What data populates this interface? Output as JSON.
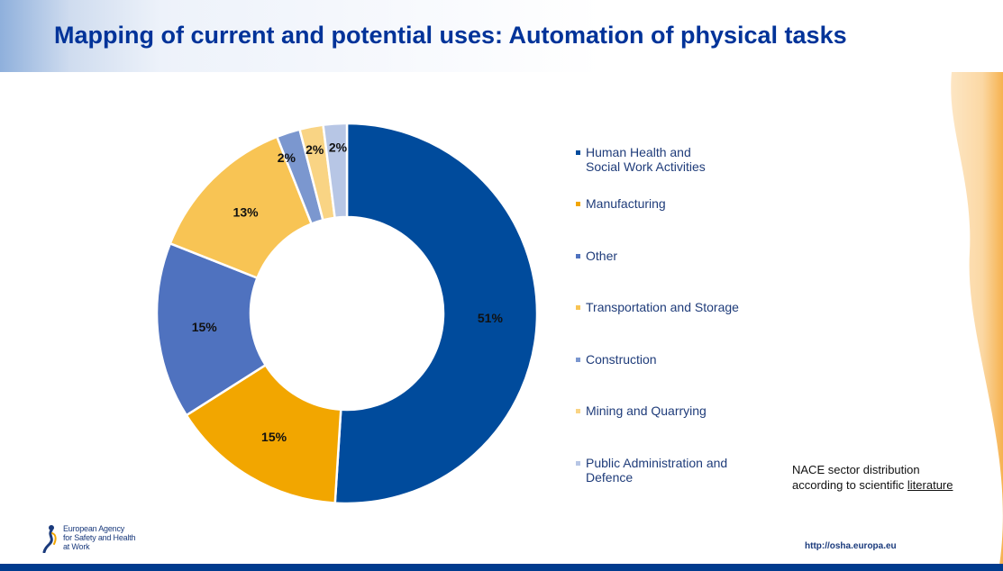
{
  "header": {
    "title": "Mapping of current and potential uses: Automation of physical tasks"
  },
  "chart_data": {
    "type": "pie",
    "style": "donut",
    "legend_position": "right",
    "series": [
      {
        "name": "Human Health and\nSocial Work Activities",
        "value": 51,
        "label": "51%",
        "color": "#004b9c"
      },
      {
        "name": "Manufacturing",
        "value": 15,
        "label": "15%",
        "color": "#f2a600"
      },
      {
        "name": "Other",
        "value": 15,
        "label": "15%",
        "color": "#4f72bf"
      },
      {
        "name": "Transportation and Storage",
        "value": 13,
        "label": "13%",
        "color": "#f8c454"
      },
      {
        "name": "Construction",
        "value": 2,
        "label": "2%",
        "color": "#7b97cf"
      },
      {
        "name": "Mining and Quarrying",
        "value": 2,
        "label": "2%",
        "color": "#f9d484"
      },
      {
        "name": "Public Administration and\nDefence",
        "value": 2,
        "label": "2%",
        "color": "#b7c6e5"
      }
    ]
  },
  "note": {
    "line1": "NACE sector distribution",
    "line2_prefix": "according to scientific ",
    "line2_link": "literature"
  },
  "footer": {
    "logo_text": "European Agency\nfor Safety and Health\nat Work",
    "url": "http://osha.europa.eu"
  },
  "colors": {
    "title": "#003399",
    "bottom_bar": "#003b8e",
    "swoosh": "#f6b24f"
  }
}
